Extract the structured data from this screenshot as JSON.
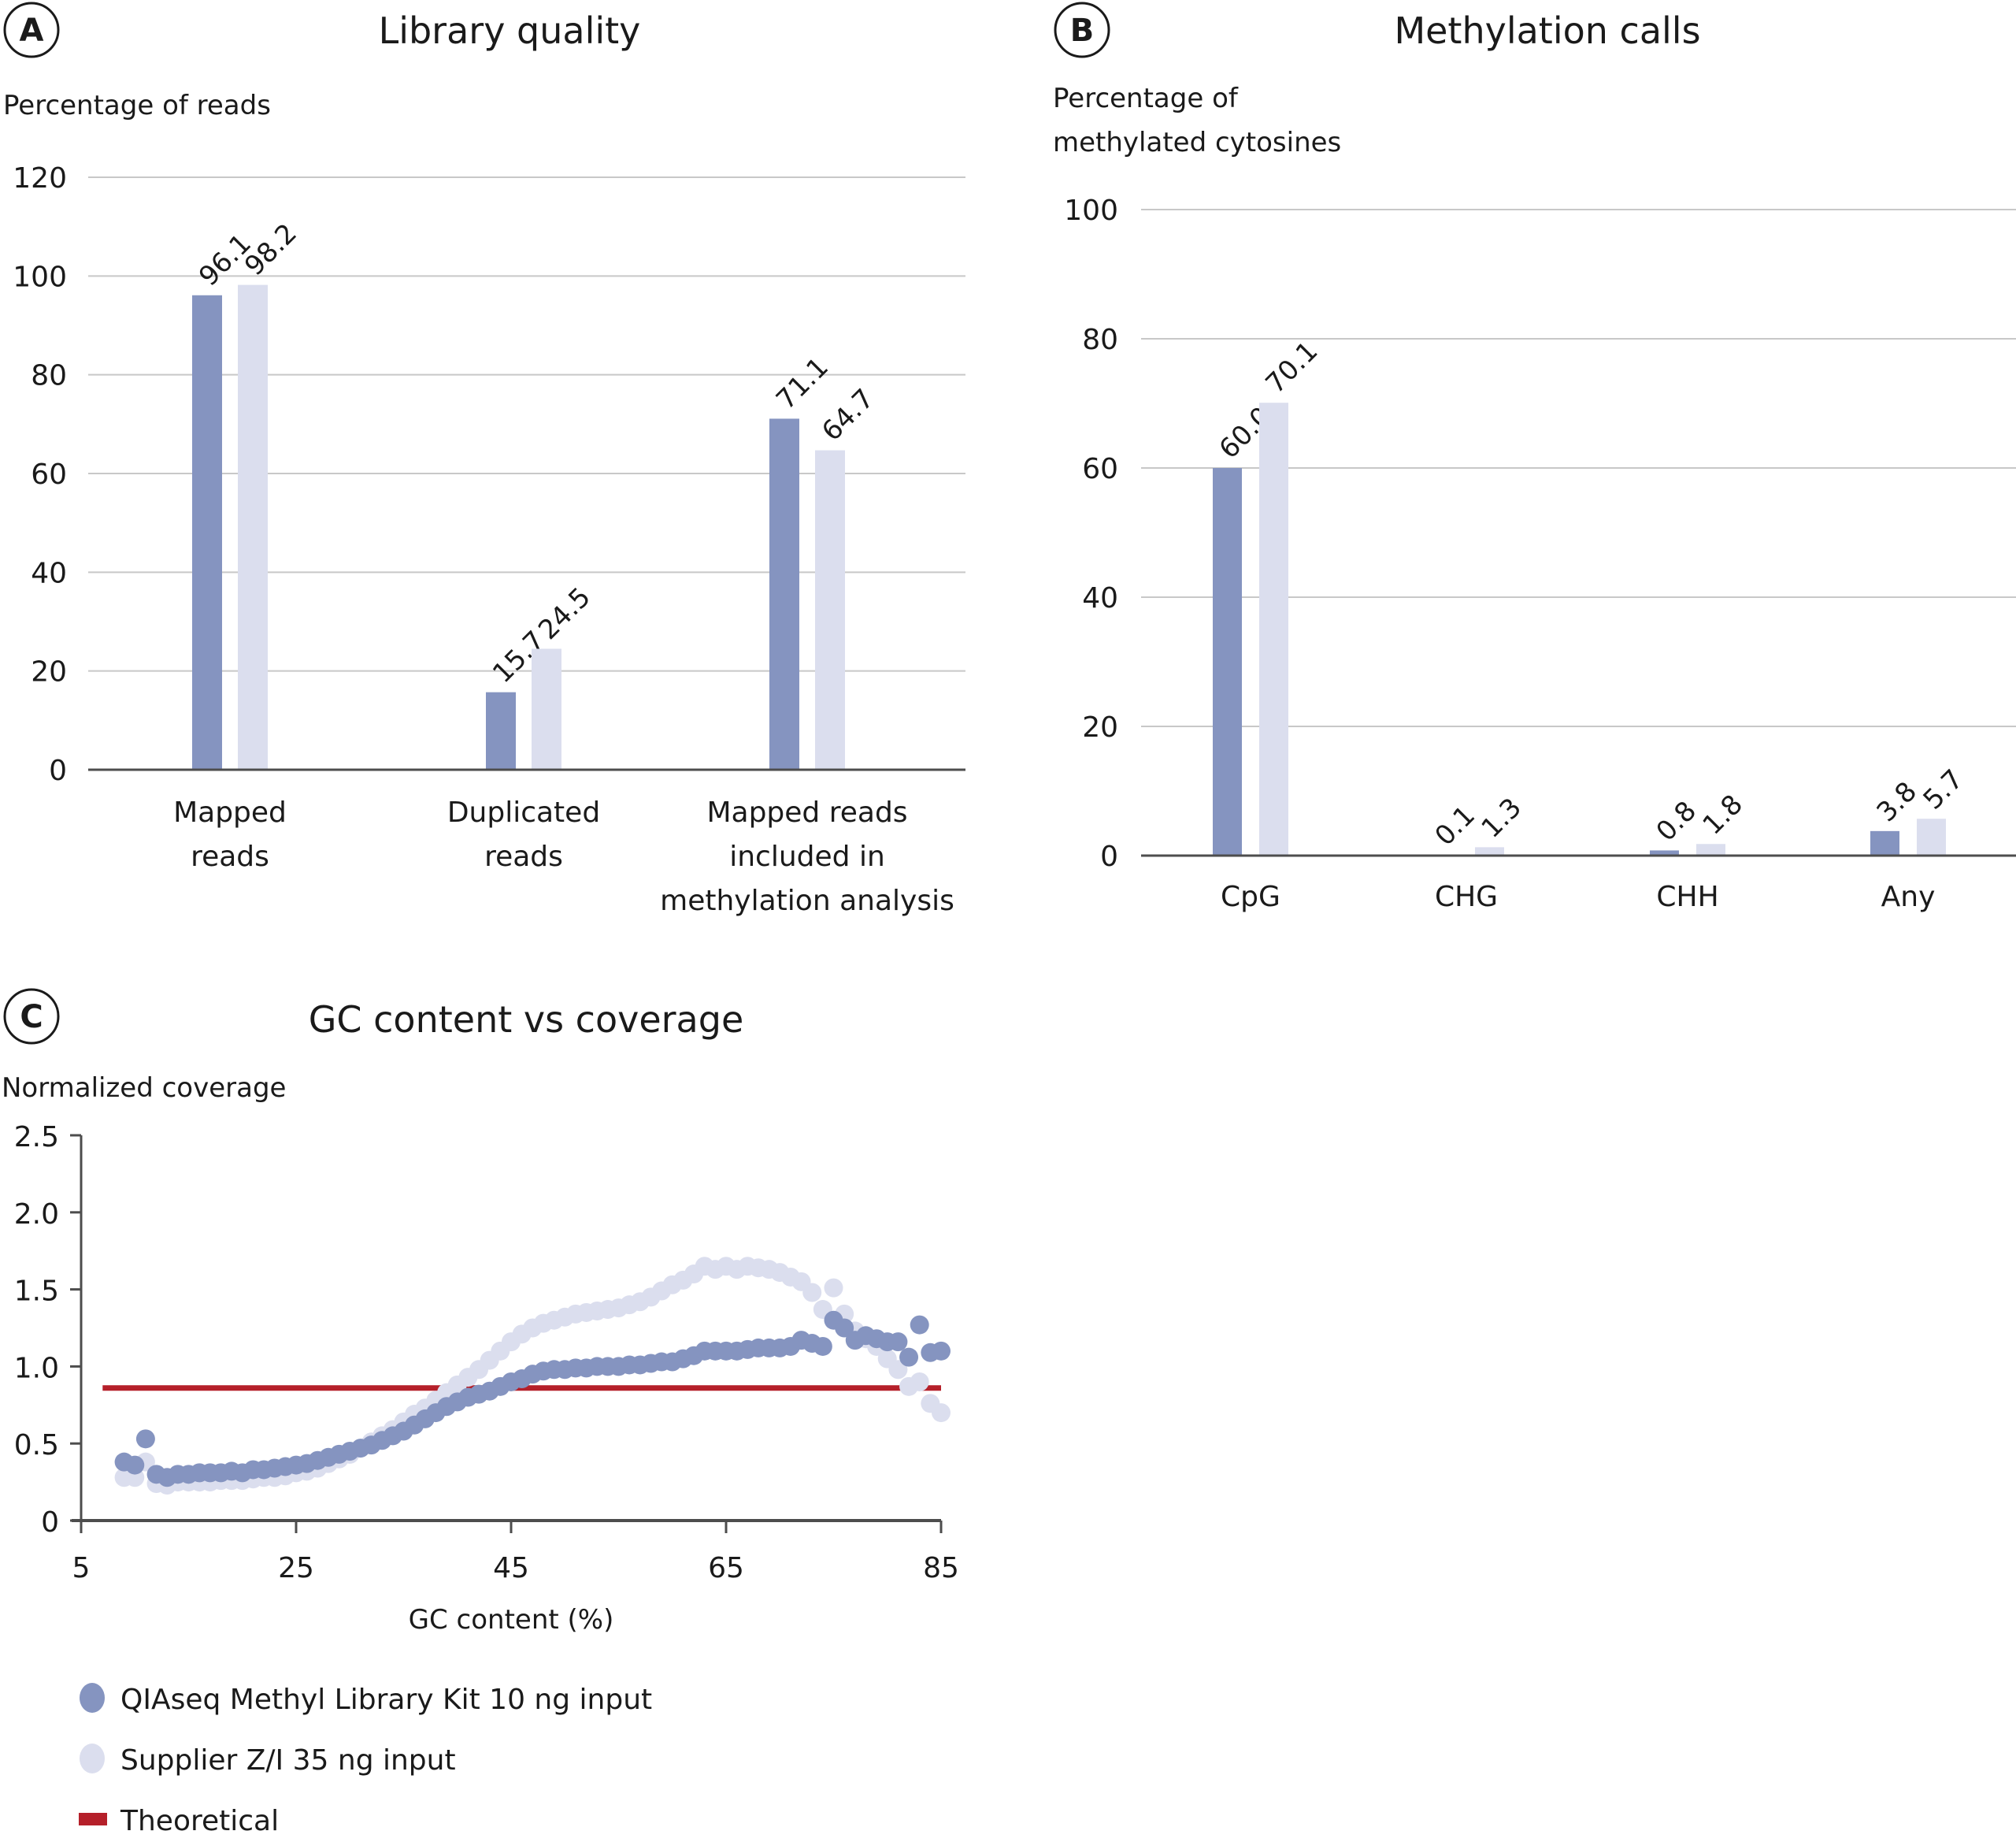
{
  "colors": {
    "series_primary": "#8594c0",
    "series_secondary": "#dbdeee",
    "theoretical": "#b5202a",
    "gridline": "#c8c8c8",
    "axis": "#4d4d4d"
  },
  "legend": {
    "items": [
      {
        "label": "QIAseq Methyl Library Kit 10 ng input",
        "marker": "circle",
        "color": "#8594c0"
      },
      {
        "label": "Supplier Z/I 35 ng input",
        "marker": "circle",
        "color": "#dbdeee"
      },
      {
        "label": "Theoretical",
        "marker": "line",
        "color": "#b5202a"
      }
    ]
  },
  "chart_data": [
    {
      "panel": "A",
      "type": "bar",
      "title": "Library quality",
      "ylabel": "Percentage of reads",
      "xlabel": "",
      "ylim": [
        0,
        120
      ],
      "yticks": [
        0,
        20,
        40,
        60,
        80,
        100,
        120
      ],
      "grid": true,
      "categories": [
        [
          "Mapped",
          "reads"
        ],
        [
          "Duplicated",
          "reads"
        ],
        [
          "Mapped reads",
          "included in",
          "methylation analysis"
        ]
      ],
      "series": [
        {
          "name": "QIAseq Methyl Library Kit 10 ng input",
          "values": [
            96.1,
            15.7,
            71.1
          ],
          "labels": [
            "96.1",
            "15.7",
            "71.1"
          ]
        },
        {
          "name": "Supplier Z/I 35 ng input",
          "values": [
            98.2,
            24.5,
            64.7
          ],
          "labels": [
            "98.2",
            "24.5",
            "64.7"
          ]
        }
      ]
    },
    {
      "panel": "B",
      "type": "bar",
      "title": "Methylation calls",
      "ylabel": [
        "Percentage of",
        "methylated cytosines"
      ],
      "xlabel": "",
      "ylim": [
        0,
        100
      ],
      "yticks": [
        0,
        20,
        40,
        60,
        80,
        100
      ],
      "grid": true,
      "categories": [
        [
          "CpG"
        ],
        [
          "CHG"
        ],
        [
          "CHH"
        ],
        [
          "Any"
        ]
      ],
      "series": [
        {
          "name": "QIAseq Methyl Library Kit 10 ng input",
          "values": [
            60.0,
            0.1,
            0.8,
            3.8
          ],
          "labels": [
            "60.0",
            "0.1",
            "0.8",
            "3.8"
          ]
        },
        {
          "name": "Supplier Z/I 35 ng input",
          "values": [
            70.1,
            1.3,
            1.8,
            5.7
          ],
          "labels": [
            "70.1",
            "1.3",
            "1.8",
            "5.7"
          ]
        }
      ]
    },
    {
      "panel": "C",
      "type": "scatter",
      "title": "GC content vs coverage",
      "ylabel": "Normalized coverage",
      "xlabel": "GC content (%)",
      "xlim": [
        5,
        85
      ],
      "ylim": [
        0,
        2.5
      ],
      "xticks": [
        5,
        25,
        45,
        65,
        85
      ],
      "yticks": [
        "0",
        "0.5",
        "1.0",
        "1.5",
        "2.0",
        "2.5"
      ],
      "ytick_values": [
        0,
        0.5,
        1.0,
        1.5,
        2.0,
        2.5
      ],
      "grid": false,
      "legend_position": "bottom-left",
      "theoretical": {
        "name": "Theoretical",
        "y": 0.86,
        "x_range": [
          7,
          85
        ]
      },
      "series": [
        {
          "name": "QIAseq Methyl Library Kit 10 ng input",
          "points": [
            [
              9,
              0.38
            ],
            [
              10,
              0.36
            ],
            [
              11,
              0.53
            ],
            [
              12,
              0.3
            ],
            [
              13,
              0.28
            ],
            [
              14,
              0.3
            ],
            [
              15,
              0.3
            ],
            [
              16,
              0.31
            ],
            [
              17,
              0.31
            ],
            [
              18,
              0.31
            ],
            [
              19,
              0.32
            ],
            [
              20,
              0.31
            ],
            [
              21,
              0.33
            ],
            [
              22,
              0.33
            ],
            [
              23,
              0.34
            ],
            [
              24,
              0.35
            ],
            [
              25,
              0.36
            ],
            [
              26,
              0.37
            ],
            [
              27,
              0.39
            ],
            [
              28,
              0.41
            ],
            [
              29,
              0.43
            ],
            [
              30,
              0.45
            ],
            [
              31,
              0.47
            ],
            [
              32,
              0.49
            ],
            [
              33,
              0.52
            ],
            [
              34,
              0.55
            ],
            [
              35,
              0.58
            ],
            [
              36,
              0.62
            ],
            [
              37,
              0.66
            ],
            [
              38,
              0.7
            ],
            [
              39,
              0.74
            ],
            [
              40,
              0.77
            ],
            [
              41,
              0.8
            ],
            [
              42,
              0.82
            ],
            [
              43,
              0.84
            ],
            [
              44,
              0.87
            ],
            [
              45,
              0.9
            ],
            [
              46,
              0.92
            ],
            [
              47,
              0.95
            ],
            [
              48,
              0.97
            ],
            [
              49,
              0.98
            ],
            [
              50,
              0.98
            ],
            [
              51,
              0.99
            ],
            [
              52,
              0.99
            ],
            [
              53,
              1.0
            ],
            [
              54,
              1.0
            ],
            [
              55,
              1.0
            ],
            [
              56,
              1.01
            ],
            [
              57,
              1.01
            ],
            [
              58,
              1.02
            ],
            [
              59,
              1.03
            ],
            [
              60,
              1.03
            ],
            [
              61,
              1.05
            ],
            [
              62,
              1.07
            ],
            [
              63,
              1.1
            ],
            [
              64,
              1.1
            ],
            [
              65,
              1.1
            ],
            [
              66,
              1.1
            ],
            [
              67,
              1.11
            ],
            [
              68,
              1.12
            ],
            [
              69,
              1.12
            ],
            [
              70,
              1.12
            ],
            [
              71,
              1.13
            ],
            [
              72,
              1.17
            ],
            [
              73,
              1.15
            ],
            [
              74,
              1.13
            ],
            [
              75,
              1.3
            ],
            [
              76,
              1.25
            ],
            [
              77,
              1.17
            ],
            [
              78,
              1.2
            ],
            [
              79,
              1.18
            ],
            [
              80,
              1.16
            ],
            [
              81,
              1.16
            ],
            [
              82,
              1.06
            ],
            [
              83,
              1.27
            ],
            [
              84,
              1.09
            ],
            [
              85,
              1.1
            ]
          ]
        },
        {
          "name": "Supplier Z/I 35 ng input",
          "points": [
            [
              9,
              0.28
            ],
            [
              10,
              0.28
            ],
            [
              11,
              0.38
            ],
            [
              12,
              0.24
            ],
            [
              13,
              0.23
            ],
            [
              14,
              0.25
            ],
            [
              15,
              0.25
            ],
            [
              16,
              0.25
            ],
            [
              17,
              0.25
            ],
            [
              18,
              0.26
            ],
            [
              19,
              0.26
            ],
            [
              20,
              0.26
            ],
            [
              21,
              0.27
            ],
            [
              22,
              0.28
            ],
            [
              23,
              0.28
            ],
            [
              24,
              0.29
            ],
            [
              25,
              0.31
            ],
            [
              26,
              0.32
            ],
            [
              27,
              0.34
            ],
            [
              28,
              0.37
            ],
            [
              29,
              0.4
            ],
            [
              30,
              0.43
            ],
            [
              31,
              0.47
            ],
            [
              32,
              0.51
            ],
            [
              33,
              0.55
            ],
            [
              34,
              0.59
            ],
            [
              35,
              0.64
            ],
            [
              36,
              0.69
            ],
            [
              37,
              0.73
            ],
            [
              38,
              0.78
            ],
            [
              39,
              0.83
            ],
            [
              40,
              0.88
            ],
            [
              41,
              0.93
            ],
            [
              42,
              0.98
            ],
            [
              43,
              1.04
            ],
            [
              44,
              1.1
            ],
            [
              45,
              1.16
            ],
            [
              46,
              1.21
            ],
            [
              47,
              1.25
            ],
            [
              48,
              1.28
            ],
            [
              49,
              1.3
            ],
            [
              50,
              1.32
            ],
            [
              51,
              1.34
            ],
            [
              52,
              1.35
            ],
            [
              53,
              1.36
            ],
            [
              54,
              1.37
            ],
            [
              55,
              1.38
            ],
            [
              56,
              1.4
            ],
            [
              57,
              1.42
            ],
            [
              58,
              1.45
            ],
            [
              59,
              1.49
            ],
            [
              60,
              1.53
            ],
            [
              61,
              1.56
            ],
            [
              62,
              1.6
            ],
            [
              63,
              1.65
            ],
            [
              64,
              1.63
            ],
            [
              65,
              1.65
            ],
            [
              66,
              1.63
            ],
            [
              67,
              1.65
            ],
            [
              68,
              1.64
            ],
            [
              69,
              1.63
            ],
            [
              70,
              1.61
            ],
            [
              71,
              1.58
            ],
            [
              72,
              1.55
            ],
            [
              73,
              1.48
            ],
            [
              74,
              1.37
            ],
            [
              75,
              1.51
            ],
            [
              76,
              1.34
            ],
            [
              77,
              1.23
            ],
            [
              78,
              1.18
            ],
            [
              79,
              1.13
            ],
            [
              80,
              1.05
            ],
            [
              81,
              0.98
            ],
            [
              82,
              0.87
            ],
            [
              83,
              0.9
            ],
            [
              84,
              0.76
            ],
            [
              85,
              0.7
            ]
          ]
        }
      ]
    }
  ]
}
